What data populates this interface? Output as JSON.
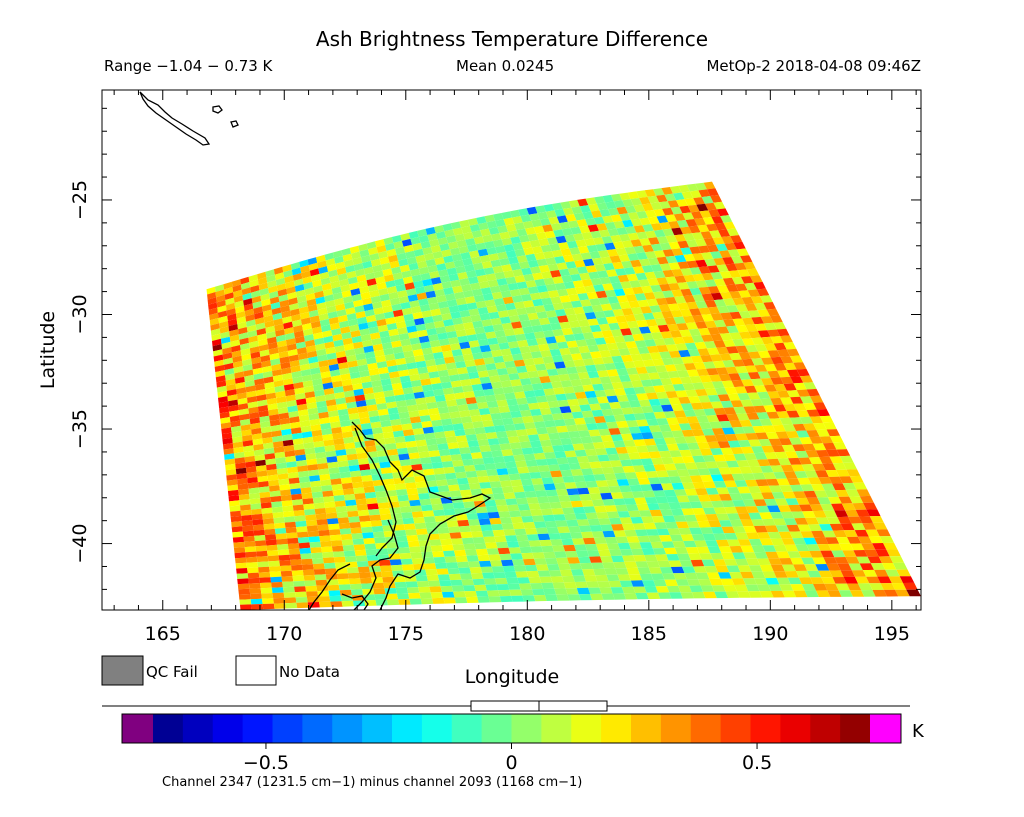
{
  "chart_data": {
    "type": "heatmap",
    "title": "Ash Brightness Temperature Difference",
    "range_text": "Range −1.04 − 0.73 K",
    "mean_text": "Mean 0.0245",
    "instrument_text": "MetOp-2 2018-04-08 09:46Z",
    "xlabel": "Longitude",
    "ylabel": "Latitude",
    "xlim": [
      162.5,
      196.2
    ],
    "ylim": [
      -42.9,
      -20.2
    ],
    "x_ticks": [
      165,
      170,
      175,
      180,
      185,
      190,
      195
    ],
    "y_ticks": [
      -25,
      -30,
      -35,
      -40
    ],
    "x_tick_labels": [
      "165",
      "170",
      "175",
      "180",
      "185",
      "190",
      "195"
    ],
    "y_tick_labels": [
      "−25",
      "−30",
      "−35",
      "−40"
    ],
    "swath_corners": [
      [
        166.8,
        -28.9
      ],
      [
        187.6,
        -24.2
      ],
      [
        196.2,
        -42.3
      ],
      [
        168.2,
        -42.9
      ]
    ],
    "legend": [
      {
        "label": "QC Fail",
        "color": "#808080"
      },
      {
        "label": "No Data",
        "color": "#ffffff"
      }
    ],
    "colorbar": {
      "range": [
        -0.73,
        0.73
      ],
      "ticks": [
        -0.5,
        0,
        0.5
      ],
      "tick_labels": [
        "−0.5",
        "0",
        "0.5"
      ],
      "unit": "K",
      "under_color": "#800080",
      "over_color": "#ff00ff",
      "colors": [
        "#00007f",
        "#0000ff",
        "#007fff",
        "#00ffff",
        "#7fff7f",
        "#ffff00",
        "#ff7f00",
        "#ff0000",
        "#7f0000"
      ]
    },
    "caption": "Channel 2347 (1231.5 cm−1) minus channel 2093 (1168 cm−1)"
  }
}
